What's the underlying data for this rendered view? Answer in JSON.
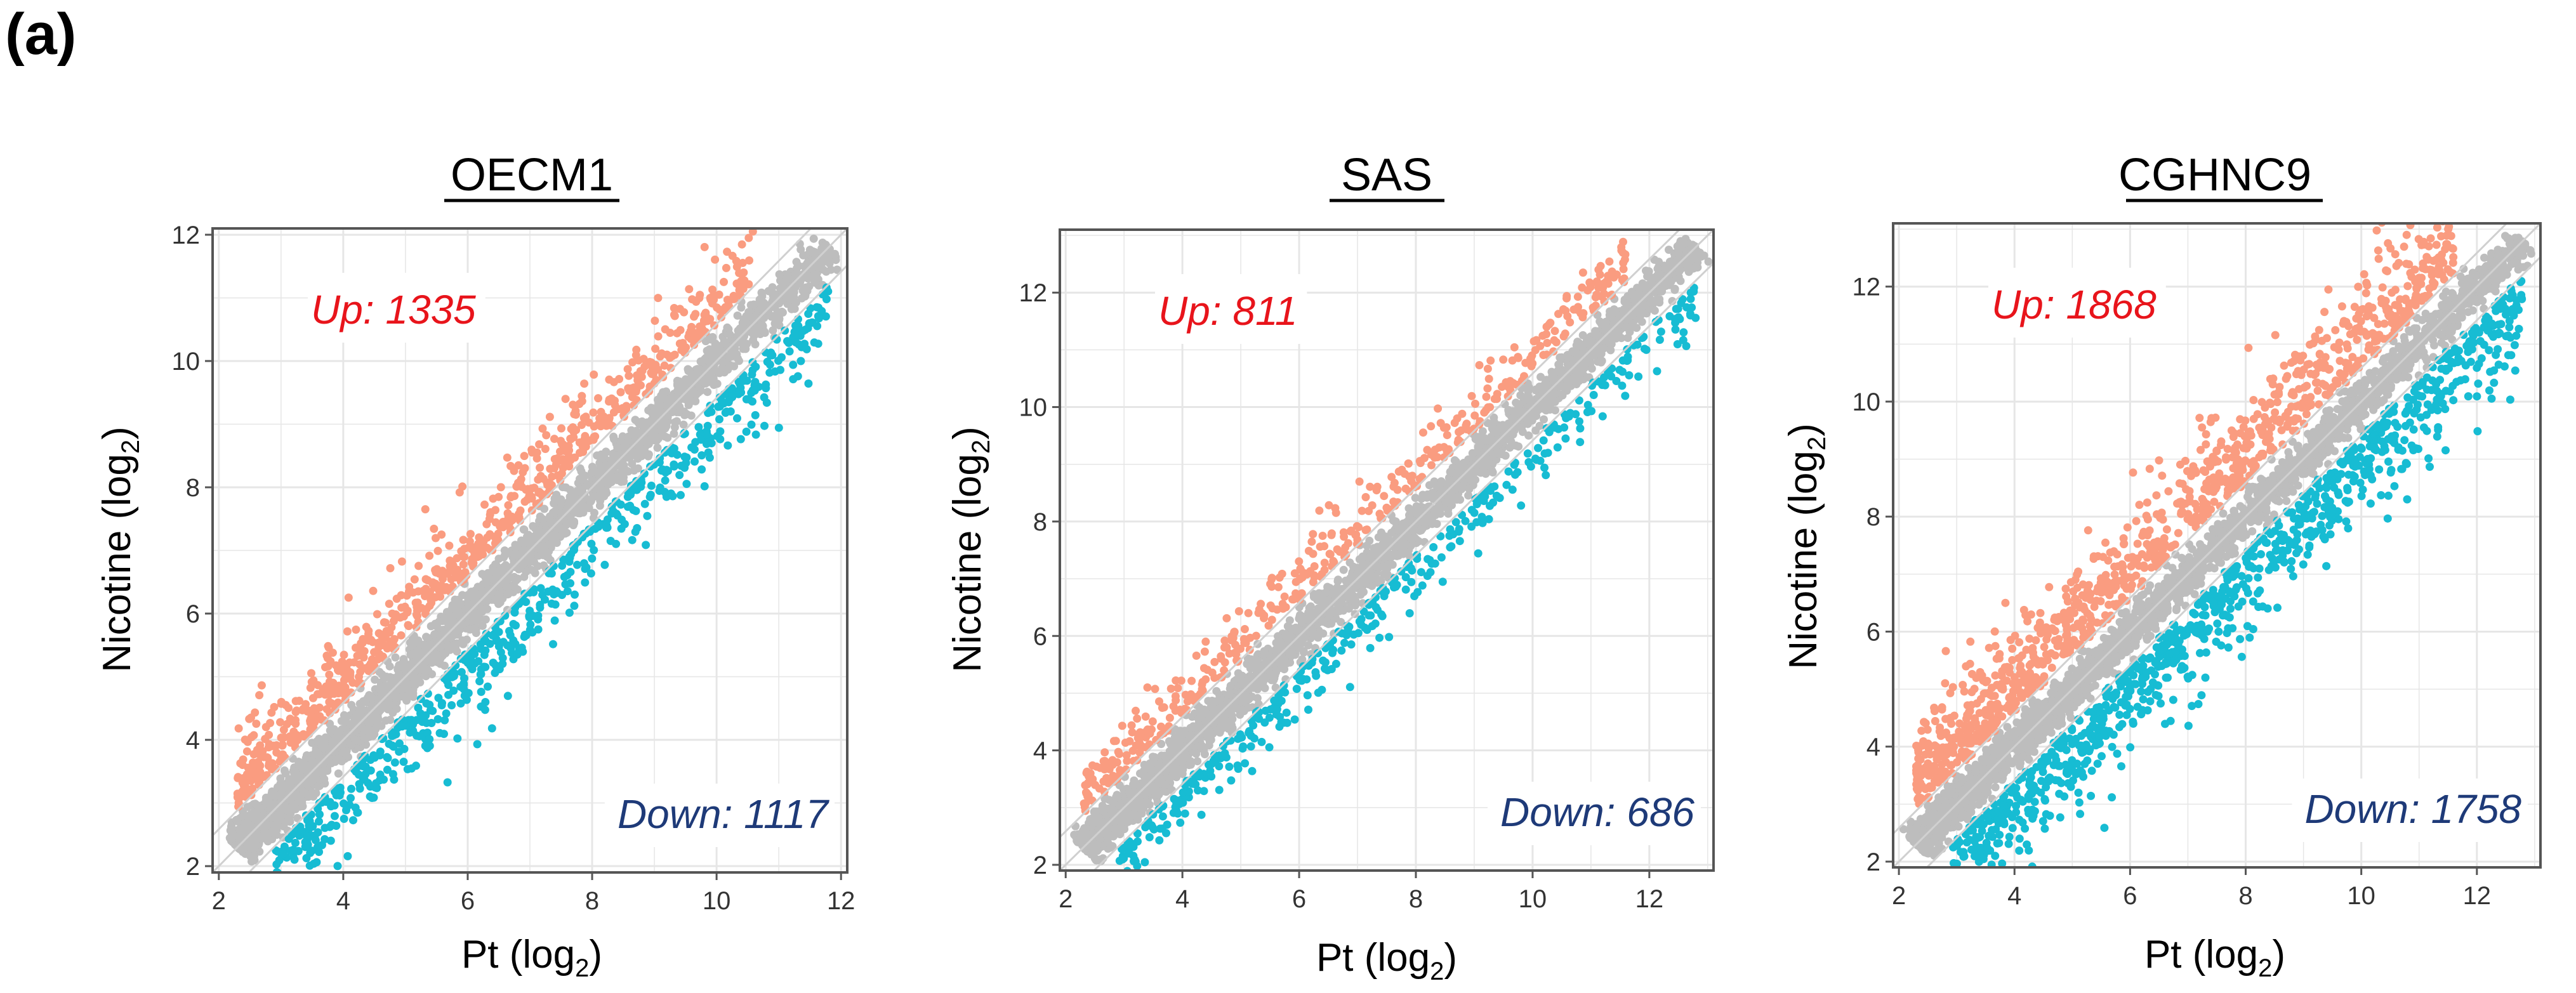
{
  "panel_label": "(a)",
  "colors": {
    "up": "#fa9c80",
    "down": "#17bcd3",
    "unchanged": "#bdbdbd",
    "up_text": "#e8141b",
    "down_text": "#1e3a78",
    "grid": "#e6e6e6"
  },
  "chart_data": [
    {
      "type": "scatter",
      "title": "OECM1",
      "xlabel": "Pt (log",
      "ylabel": "Nicotine (log",
      "label_subscript": "2",
      "xlim": [
        1.9,
        12.1
      ],
      "ylim": [
        1.9,
        12.1
      ],
      "ticks": [
        2,
        4,
        6,
        8,
        10,
        12
      ],
      "tick_labels": [
        "2",
        "4",
        "6",
        "8",
        "10",
        "12"
      ],
      "fold_change_guides": [
        -0.585,
        0,
        0.585
      ],
      "up_label": "Up: 1335",
      "down_label": "Down: 1117",
      "up_count": 1335,
      "down_count": 1117,
      "series": [
        {
          "name": "Up",
          "approx_points": 1335
        },
        {
          "name": "Down",
          "approx_points": 1117
        },
        {
          "name": "Unchanged"
        }
      ],
      "spread": 0.55
    },
    {
      "type": "scatter",
      "title": "SAS",
      "xlabel": "Pt (log",
      "ylabel": "Nicotine (log",
      "label_subscript": "2",
      "xlim": [
        1.9,
        13.1
      ],
      "ylim": [
        1.9,
        13.1
      ],
      "ticks": [
        2,
        4,
        6,
        8,
        10,
        12
      ],
      "tick_labels": [
        "2",
        "4",
        "6",
        "8",
        "10",
        "12"
      ],
      "fold_change_guides": [
        -0.585,
        0,
        0.585
      ],
      "up_label": "Up: 811",
      "down_label": "Down: 686",
      "up_count": 811,
      "down_count": 686,
      "series": [
        {
          "name": "Up",
          "approx_points": 811
        },
        {
          "name": "Down",
          "approx_points": 686
        },
        {
          "name": "Unchanged"
        }
      ],
      "spread": 0.42
    },
    {
      "type": "scatter",
      "title": "CGHNC9",
      "xlabel": "Pt (log",
      "ylabel": "Nicotine (log",
      "label_subscript": "2",
      "xlim": [
        1.9,
        13.1
      ],
      "ylim": [
        1.9,
        13.1
      ],
      "ticks": [
        2,
        4,
        6,
        8,
        10,
        12
      ],
      "tick_labels": [
        "2",
        "4",
        "6",
        "8",
        "10",
        "12"
      ],
      "fold_change_guides": [
        -0.585,
        0,
        0.585
      ],
      "up_label": "Up: 1868",
      "down_label": "Down: 1758",
      "up_count": 1868,
      "down_count": 1758,
      "series": [
        {
          "name": "Up",
          "approx_points": 1868
        },
        {
          "name": "Down",
          "approx_points": 1758
        },
        {
          "name": "Unchanged"
        }
      ],
      "spread": 0.75
    }
  ]
}
